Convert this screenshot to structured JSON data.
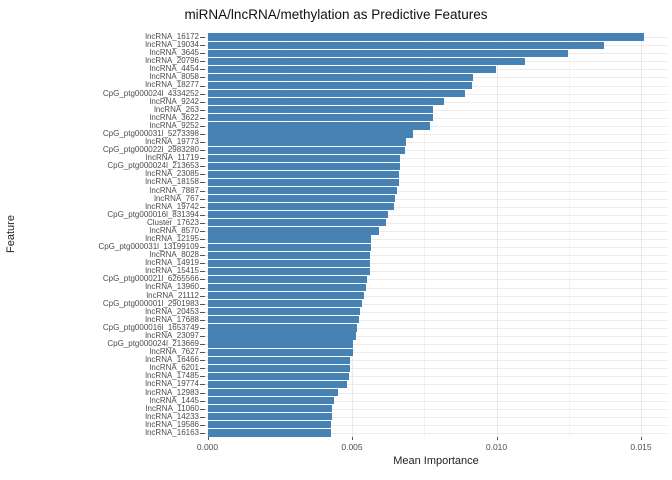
{
  "chart_data": {
    "type": "bar",
    "orientation": "horizontal",
    "title": "miRNA/lncRNA/methylation as Predictive Features",
    "xlabel": "Mean Importance",
    "ylabel": "Feature",
    "x_tick_labels": [
      "0.000",
      "0.005",
      "0.010",
      "0.015"
    ],
    "x_tick_values": [
      0,
      0.005,
      0.01,
      0.015
    ],
    "x_minor_tick_values": [
      0.0025,
      0.0075,
      0.0125
    ],
    "xlim": [
      0,
      0.0159
    ],
    "grid": "on",
    "legend": "none",
    "bar_color": "#4682B4",
    "grid_major_color": "#e7e7e7",
    "grid_minor_color": "#f3f3f3",
    "categories": [
      "lncRNA_16172",
      "lncRNA_19034",
      "lncRNA_3645",
      "lncRNA_20796",
      "lncRNA_4454",
      "lncRNA_8058",
      "lncRNA_18277",
      "CpG_ptg000024l_4334252",
      "lncRNA_9242",
      "lncRNA_263",
      "lncRNA_3622",
      "lncRNA_9252",
      "CpG_ptg000031l_5273398",
      "lncRNA_19773",
      "CpG_ptg000022l_2983280",
      "lncRNA_11719",
      "CpG_ptg000024l_213653",
      "lncRNA_23085",
      "lncRNA_18158",
      "lncRNA_7887",
      "lncRNA_767",
      "lncRNA_19742",
      "CpG_ptg000016l_831394",
      "Cluster_17623",
      "lncRNA_8570",
      "lncRNA_12195",
      "CpG_ptg000031l_13199109",
      "lncRNA_8028",
      "lncRNA_14919",
      "lncRNA_15415",
      "CpG_ptg000021l_6265566",
      "lncRNA_13960",
      "lncRNA_21112",
      "CpG_ptg000001l_2901983",
      "lncRNA_20453",
      "lncRNA_17688",
      "CpG_ptg000016l_1653749",
      "lncRNA_23097",
      "CpG_ptg000024l_213669",
      "lncRNA_7627",
      "lncRNA_16466",
      "lncRNA_6201",
      "lncRNA_17485",
      "lncRNA_19774",
      "lncRNA_12983",
      "lncRNA_1445",
      "lncRNA_11060",
      "lncRNA_14233",
      "lncRNA_19586",
      "lncRNA_16163"
    ],
    "values": [
      0.01512,
      0.01372,
      0.01247,
      0.01098,
      0.00998,
      0.00918,
      0.00915,
      0.0089,
      0.00817,
      0.00781,
      0.00779,
      0.00771,
      0.00711,
      0.00686,
      0.00684,
      0.00666,
      0.00665,
      0.00663,
      0.00662,
      0.00655,
      0.0065,
      0.00646,
      0.00624,
      0.00618,
      0.00594,
      0.00567,
      0.00565,
      0.00564,
      0.00562,
      0.00561,
      0.00551,
      0.0055,
      0.00543,
      0.00536,
      0.00529,
      0.00523,
      0.00517,
      0.00513,
      0.00504,
      0.00503,
      0.00493,
      0.00492,
      0.00491,
      0.00481,
      0.00452,
      0.00437,
      0.00431,
      0.0043,
      0.00429,
      0.00428
    ]
  }
}
